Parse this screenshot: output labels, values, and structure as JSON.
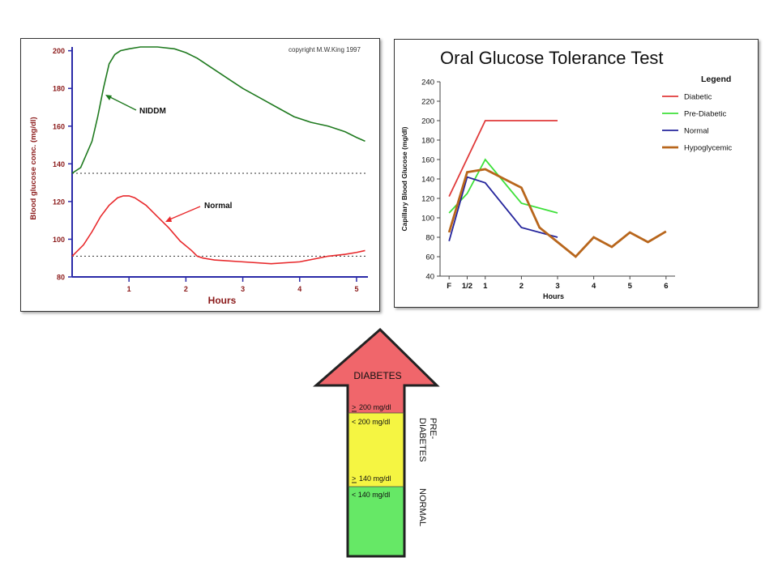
{
  "chart_data": [
    {
      "type": "line",
      "copyright": "copyright M.W.King 1997",
      "xlabel": "Hours",
      "ylabel": "Blood glucose conc. (mg/dl)",
      "xlim": [
        0,
        5.2
      ],
      "ylim": [
        80,
        202
      ],
      "x_ticks": [
        "1",
        "2",
        "3",
        "4",
        "5"
      ],
      "y_ticks": [
        "200",
        "180",
        "160",
        "140",
        "120",
        "100",
        "80"
      ],
      "reference_lines": [
        135,
        91
      ],
      "series": [
        {
          "name": "NIDDM",
          "color": "#1f7a1f",
          "x": [
            0,
            0.15,
            0.25,
            0.35,
            0.45,
            0.55,
            0.65,
            0.75,
            0.85,
            1.0,
            1.2,
            1.5,
            1.8,
            2.0,
            2.2,
            2.5,
            2.8,
            3.0,
            3.3,
            3.6,
            3.9,
            4.2,
            4.5,
            4.7,
            4.8,
            5.0,
            5.15
          ],
          "y": [
            135,
            138,
            145,
            152,
            165,
            180,
            193,
            198,
            200,
            201,
            202,
            202,
            201,
            199,
            196,
            190,
            184,
            180,
            175,
            170,
            165,
            162,
            160,
            158,
            157,
            154,
            152
          ]
        },
        {
          "name": "Normal",
          "color": "#e8292c",
          "x": [
            0,
            0.2,
            0.35,
            0.5,
            0.65,
            0.8,
            0.9,
            1.0,
            1.1,
            1.3,
            1.5,
            1.7,
            1.9,
            2.1,
            2.2,
            2.3,
            2.5,
            3.0,
            3.5,
            4.0,
            4.5,
            4.8,
            5.0,
            5.15
          ],
          "y": [
            91,
            97,
            104,
            112,
            118,
            122,
            123,
            123,
            122,
            118,
            112,
            106,
            99,
            94,
            91,
            90,
            89,
            88,
            87,
            88,
            91,
            92,
            93,
            94
          ]
        }
      ],
      "annotations": [
        "NIDDM",
        "Normal"
      ]
    },
    {
      "type": "line",
      "title": "Oral Glucose Tolerance Test",
      "xlabel": "Hours",
      "ylabel": "Capillary Blood Glucose (mg/dl)",
      "ylim": [
        40,
        240
      ],
      "y_ticks": [
        "240",
        "220",
        "200",
        "180",
        "160",
        "140",
        "120",
        "100",
        "80",
        "60",
        "40"
      ],
      "x_tick_labels": [
        {
          "label": "F",
          "x": 0
        },
        {
          "label": "1/2",
          "x": 0.5
        },
        {
          "label": "1",
          "x": 1
        },
        {
          "label": "2",
          "x": 2
        },
        {
          "label": "3",
          "x": 3
        },
        {
          "label": "4",
          "x": 4
        },
        {
          "label": "5",
          "x": 5
        },
        {
          "label": "6",
          "x": 6
        }
      ],
      "xlim": [
        -0.25,
        6.25
      ],
      "legend_title": "Legend",
      "legend_position": "top-right",
      "series": [
        {
          "name": "Diabetic",
          "color": "#e03a3a",
          "x": [
            0,
            1,
            3
          ],
          "y": [
            122,
            200,
            200
          ]
        },
        {
          "name": "Pre-Diabetic",
          "color": "#3ee03a",
          "x": [
            0,
            0.5,
            1,
            2,
            3
          ],
          "y": [
            105,
            125,
            160,
            115,
            105
          ]
        },
        {
          "name": "Normal",
          "color": "#24249c",
          "x": [
            0,
            0.5,
            1,
            2,
            3
          ],
          "y": [
            76,
            142,
            136,
            90,
            80
          ]
        },
        {
          "name": "Hypoglycemic",
          "color": "#b8661c",
          "x": [
            0,
            0.5,
            1,
            2,
            2.5,
            3,
            3.5,
            4,
            4.5,
            5,
            5.5,
            6
          ],
          "y": [
            85,
            147,
            150,
            131,
            90,
            75,
            60,
            80,
            70,
            85,
            75,
            86
          ]
        }
      ]
    }
  ],
  "arrow": {
    "top_label": "DIABETES",
    "threshold_high": "200 mg/dl",
    "below_high": "< 200 mg/dl",
    "threshold_mid": "140 mg/dl",
    "below_mid": "< 140 mg/dl",
    "side_label_pre_1": "PRE-",
    "side_label_pre_2": "DIABETES",
    "side_label_normal": "NORMAL",
    "ge_symbol": ">",
    "colors": {
      "red": "#f0666b",
      "yellow": "#f5f542",
      "green": "#66e866"
    }
  }
}
